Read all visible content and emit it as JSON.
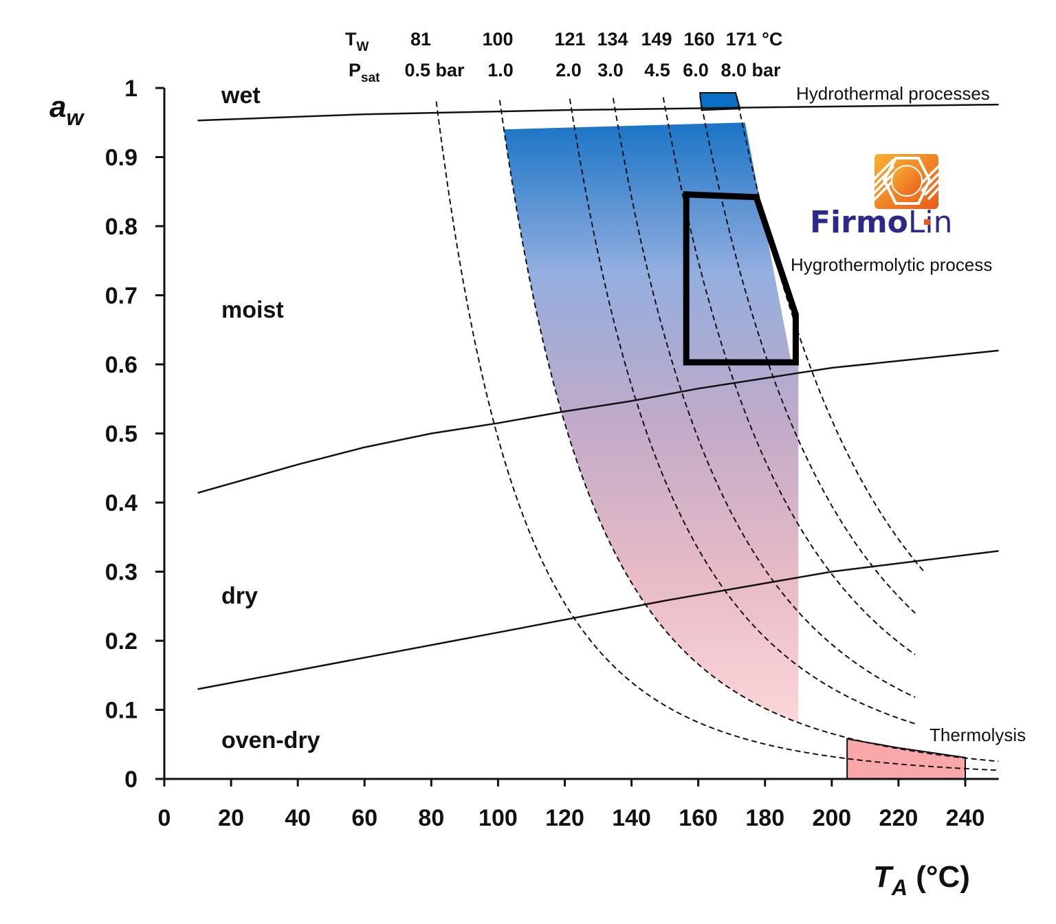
{
  "chart_data": {
    "type": "line",
    "xlabel": "T",
    "xlabel_sub": "A",
    "xlabel_unit": " (°C)",
    "ylabel": "a",
    "ylabel_sub": "w",
    "xlim": [
      0,
      250
    ],
    "ylim": [
      0,
      1
    ],
    "x_ticks": [
      0,
      20,
      40,
      60,
      80,
      100,
      120,
      140,
      160,
      180,
      200,
      220,
      240
    ],
    "y_ticks": [
      0,
      0.1,
      0.2,
      0.3,
      0.4,
      0.5,
      0.6,
      0.7,
      0.8,
      0.9,
      1
    ],
    "y_tick_labels": [
      "0",
      "0.1",
      "0.2",
      "0.3",
      "0.4",
      "0.5",
      "0.6",
      "0.7",
      "0.8",
      "0.9",
      "1"
    ],
    "grid": false,
    "header": {
      "tw_label": "T",
      "tw_sub": "W",
      "psat_label": "P",
      "psat_sub": "sat",
      "tw_values": [
        "81",
        "100",
        "121",
        "134",
        "149",
        "160",
        "171 °C"
      ],
      "psat_values": [
        "0.5 bar",
        "1.0",
        "2.0",
        "3.0",
        "4.5",
        "6.0",
        "8.0 bar"
      ]
    },
    "isobars": [
      {
        "tw": 81,
        "psat_bar": 0.5,
        "x_end": 250
      },
      {
        "tw": 100,
        "psat_bar": 1.0,
        "x_end": 250
      },
      {
        "tw": 121,
        "psat_bar": 2.0,
        "x_end": 225
      },
      {
        "tw": 134,
        "psat_bar": 3.0,
        "x_end": 225
      },
      {
        "tw": 149,
        "psat_bar": 4.5,
        "x_end": 225
      },
      {
        "tw": 160,
        "psat_bar": 6.0,
        "x_end": 225
      },
      {
        "tw": 171,
        "psat_bar": 8.0,
        "x_end": 228
      }
    ],
    "boundaries": [
      {
        "x": [
          10,
          60,
          120,
          180,
          250
        ],
        "y": [
          0.953,
          0.962,
          0.968,
          0.972,
          0.976
        ]
      },
      {
        "x": [
          10,
          40,
          60,
          80,
          100,
          120,
          140,
          160,
          180,
          200,
          250
        ],
        "y": [
          0.414,
          0.455,
          0.48,
          0.5,
          0.515,
          0.532,
          0.547,
          0.565,
          0.58,
          0.595,
          0.62
        ]
      },
      {
        "x": [
          10,
          100,
          150,
          200,
          250
        ],
        "y": [
          0.13,
          0.212,
          0.258,
          0.3,
          0.33
        ]
      }
    ],
    "regions": [
      "wet",
      "moist",
      "dry",
      "oven-dry"
    ],
    "process_areas": {
      "hydrothermal": {
        "label": "Hydrothermal processes",
        "points": [
          [
            160.5,
            0.993
          ],
          [
            171.2,
            0.993
          ],
          [
            172.5,
            0.97
          ],
          [
            161,
            0.968
          ]
        ],
        "color": "#0b6fc4"
      },
      "hygrothermolytic_field": {
        "points_top": [
          [
            101,
            0.94
          ],
          [
            174,
            0.95
          ]
        ],
        "right_edge": [
          [
            174,
            0.95
          ],
          [
            188,
            0.6
          ],
          [
            190,
            0.6
          ],
          [
            190,
            0.085
          ]
        ],
        "follows_isobar_tw": 100,
        "color_top": "#1a74c6",
        "color_bottom": "#fbd0d5"
      },
      "hygrothermolytic": {
        "label": "Hygrothermolytic process",
        "points": [
          [
            156.4,
            0.846
          ],
          [
            177.4,
            0.842
          ],
          [
            189.2,
            0.672
          ],
          [
            189.2,
            0.603
          ],
          [
            156.4,
            0.603
          ]
        ]
      },
      "thermolysis": {
        "label": "Thermolysis",
        "points": [
          [
            204.6,
            0.058
          ],
          [
            220,
            0.045
          ],
          [
            240,
            0.031
          ],
          [
            240,
            0
          ],
          [
            204.6,
            0
          ]
        ],
        "color": "#f9a7a9"
      }
    }
  },
  "logo": {
    "text_bold": "Firmo",
    "text_light": "Lin",
    "color_text": "#2b2a8a",
    "color_icon": "#f08a1e"
  }
}
